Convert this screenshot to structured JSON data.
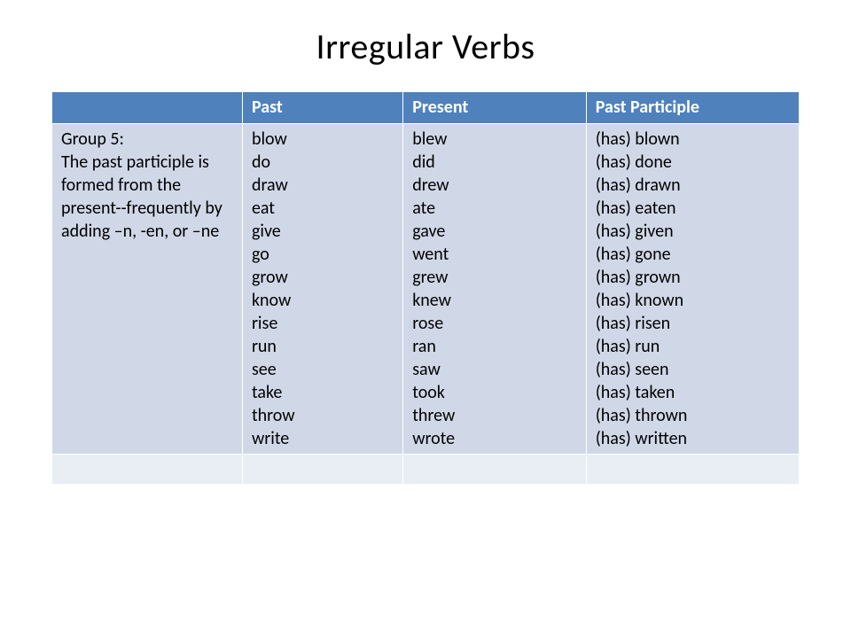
{
  "title": "Irregular Verbs",
  "table": {
    "header_bg": "#4f81bd",
    "header_fg": "#ffffff",
    "body_bg": "#d0d8e8",
    "alt_bg": "#e9edf4",
    "border_color": "#ffffff",
    "font_family": "Calibri",
    "title_fontsize": 40,
    "cell_fontsize": 20,
    "columns": [
      "",
      "Past",
      "Present",
      "Past Participle"
    ],
    "col_widths_pct": [
      25.5,
      21.5,
      24.5,
      28.5
    ],
    "rows": [
      {
        "description": "Group 5:\nThe past participle is formed from the present--frequently by adding –n, -en, or –ne",
        "past": "blow\ndo\ndraw\neat\ngive\ngo\ngrow\nknow\nrise\nrun\nsee\ntake\nthrow\nwrite",
        "present": "blew\ndid\ndrew\nate\ngave\nwent\ngrew\nknew\nrose\nran\nsaw\ntook\nthrew\nwrote",
        "past_participle": "(has) blown\n(has) done\n(has) drawn\n(has) eaten\n(has) given\n(has) gone\n(has) grown\n(has) known\n(has) risen\n(has) run\n(has) seen\n(has) taken\n(has) thrown\n(has) written"
      }
    ]
  }
}
